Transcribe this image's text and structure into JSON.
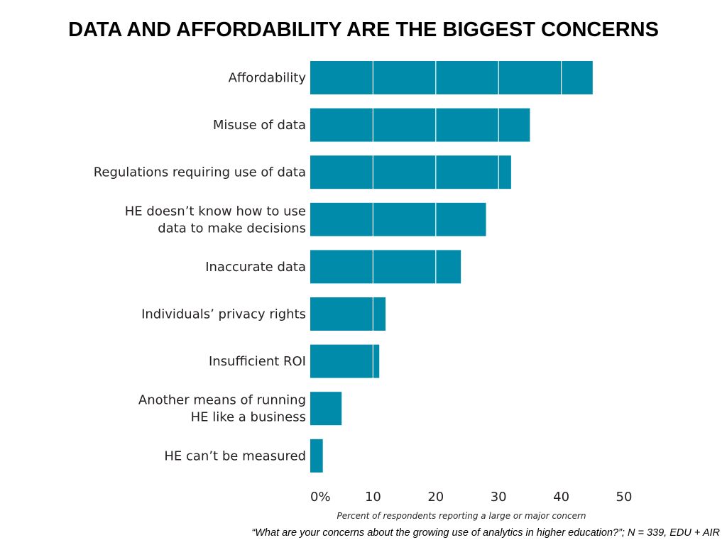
{
  "slide": {
    "title": "DATA AND AFFORDABILITY ARE THE BIGGEST CONCERNS",
    "source_note": "“What are your concerns about the growing use of analytics in higher education?”; N = 339, EDU + AIR"
  },
  "chart_data": {
    "type": "bar",
    "orientation": "horizontal",
    "categories": [
      [
        "Affordability"
      ],
      [
        "Misuse of data"
      ],
      [
        "Regulations requiring use of data"
      ],
      [
        "HE doesn’t know how to use",
        "data to make decisions"
      ],
      [
        "Inaccurate data"
      ],
      [
        "Individuals’ privacy rights"
      ],
      [
        "Insufficient ROI"
      ],
      [
        "Another means of running",
        "HE like a business"
      ],
      [
        "HE can’t be measured"
      ]
    ],
    "values": [
      45,
      35,
      32,
      28,
      24,
      12,
      11,
      5,
      2
    ],
    "xlim": [
      0,
      50
    ],
    "x_ticks": [
      0,
      10,
      20,
      30,
      40,
      50
    ],
    "x_tick_labels": [
      "0%",
      "10",
      "20",
      "30",
      "40",
      "50"
    ],
    "xlabel": "Percent of respondents reporting a large or major concern",
    "bar_color": "#008bab",
    "grid": "vertical gridlines over bars",
    "legend": "none"
  }
}
